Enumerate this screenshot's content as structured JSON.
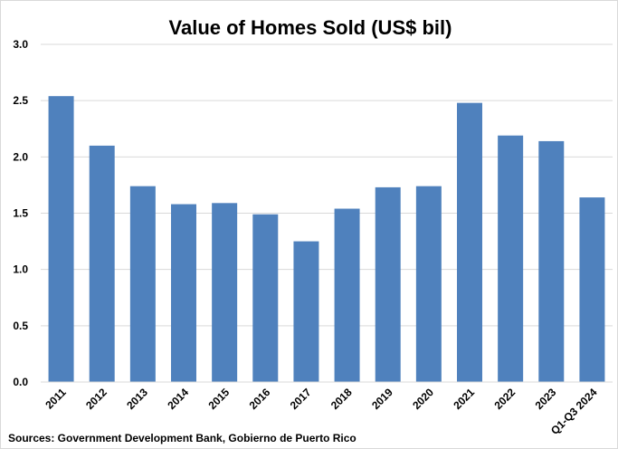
{
  "chart_data": {
    "type": "bar",
    "title": "Value of Homes Sold (US$ bil)",
    "xlabel": "",
    "ylabel": "",
    "categories": [
      "2011",
      "2012",
      "2013",
      "2014",
      "2015",
      "2016",
      "2017",
      "2018",
      "2019",
      "2020",
      "2021",
      "2022",
      "2023",
      "Q1-Q3 2024"
    ],
    "values": [
      2.54,
      2.1,
      1.74,
      1.58,
      1.59,
      1.49,
      1.25,
      1.54,
      1.73,
      1.74,
      2.48,
      2.19,
      2.14,
      1.64
    ],
    "ylim": [
      0,
      3.0
    ],
    "yticks": [
      "0.0",
      "0.5",
      "1.0",
      "1.5",
      "2.0",
      "2.5",
      "3.0"
    ],
    "grid": true,
    "legend": "none",
    "bar_color": "#4f81bd",
    "grid_color": "#d9d9d9",
    "source": "Sources: Government Development Bank, Gobierno de Puerto Rico"
  }
}
